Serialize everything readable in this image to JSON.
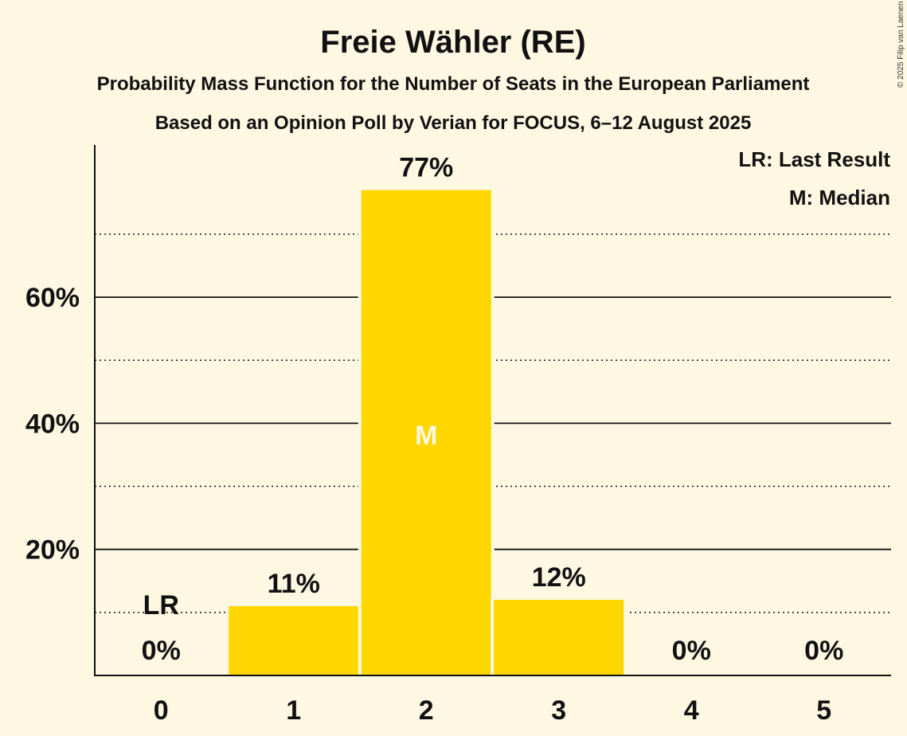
{
  "chart_data": {
    "type": "bar",
    "title": "Freie Wähler (RE)",
    "subtitle": "Probability Mass Function for the Number of Seats in the European Parliament",
    "subtitle2": "Based on an Opinion Poll by Verian for FOCUS, 6–12 August 2025",
    "copyright": "© 2025 Filip van Laenen",
    "categories": [
      "0",
      "1",
      "2",
      "3",
      "4",
      "5"
    ],
    "values": [
      0,
      11,
      77,
      12,
      0,
      0
    ],
    "value_labels": [
      "0%",
      "11%",
      "77%",
      "12%",
      "0%",
      "0%"
    ],
    "ylim": [
      0,
      84
    ],
    "yticks": [
      {
        "value": 20,
        "label": "20%"
      },
      {
        "value": 40,
        "label": "40%"
      },
      {
        "value": 60,
        "label": "60%"
      }
    ],
    "minor_grid": [
      10,
      30,
      50,
      70
    ],
    "last_result_category": "0",
    "last_result_marker": "LR",
    "median_category": "2",
    "median_marker": "M",
    "legend": [
      "LR: Last Result",
      "M: Median"
    ],
    "legend_position": "top-right",
    "colors": {
      "bar": "#FFD700",
      "background": "#FEF8E3",
      "text": "#111111"
    }
  }
}
